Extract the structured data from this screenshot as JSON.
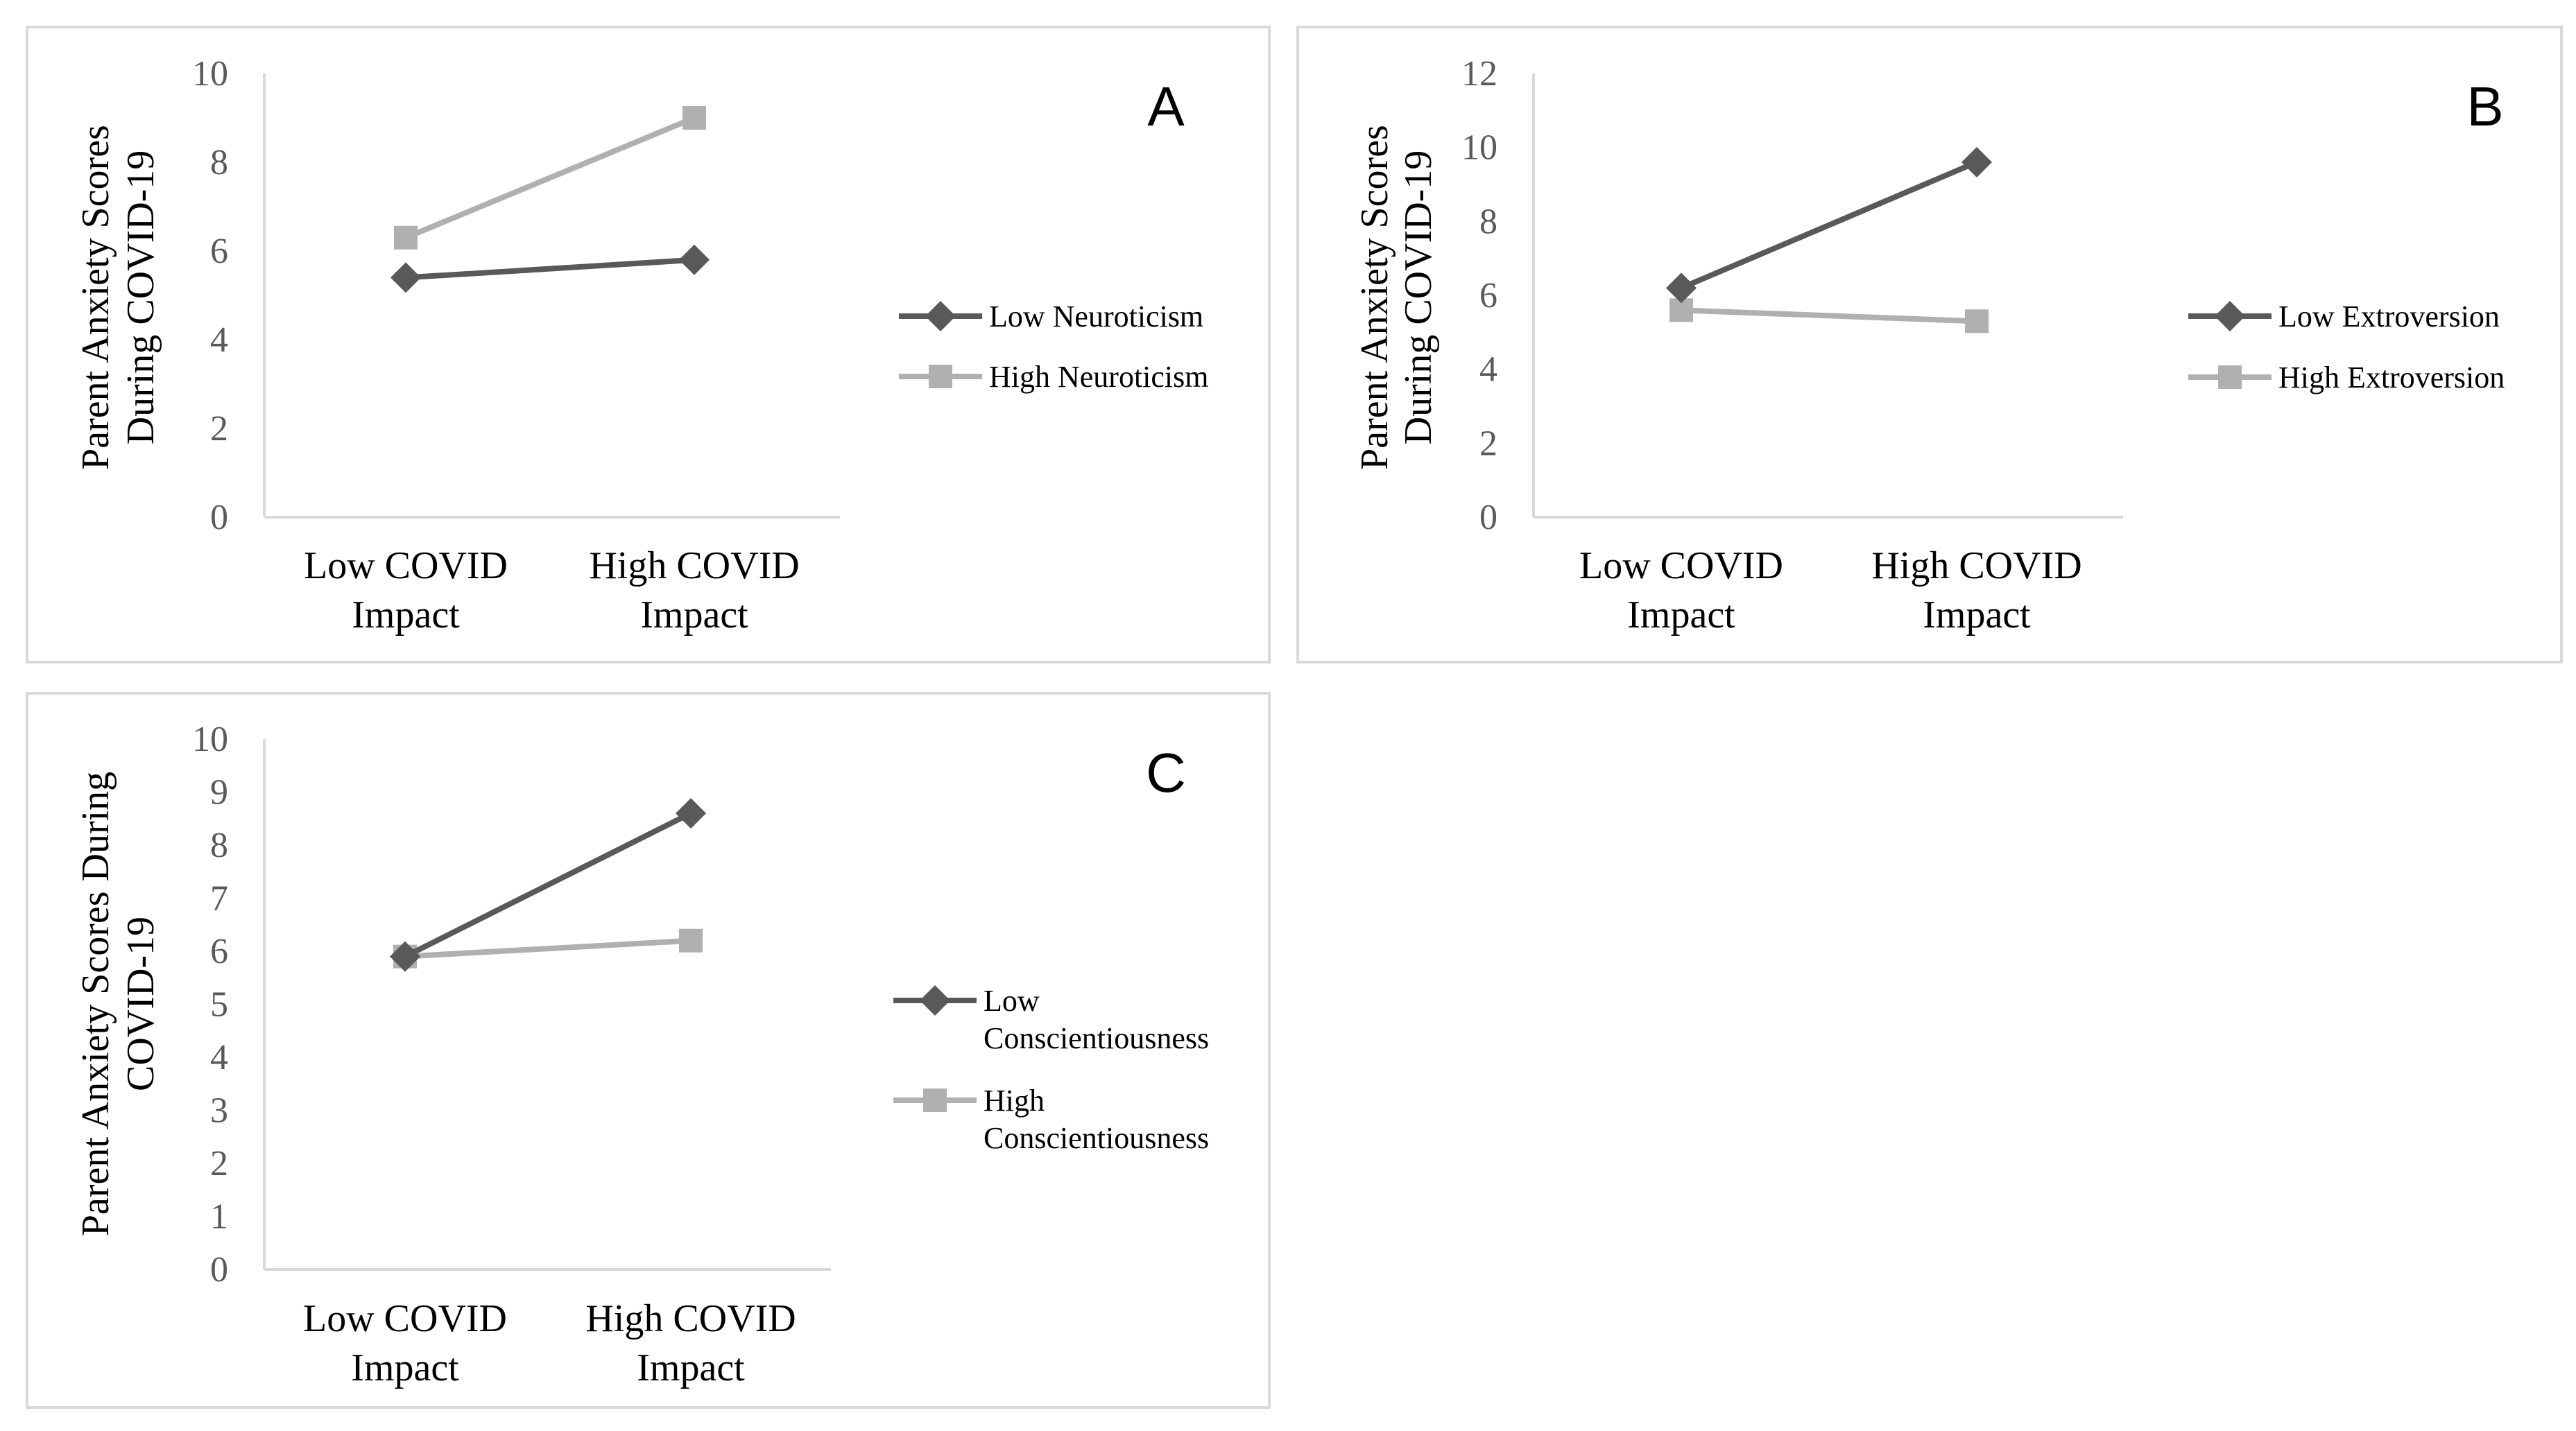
{
  "colors": {
    "low": "#595959",
    "high": "#b0b0b0",
    "axis": "#d9d9d9",
    "tick": "#595959"
  },
  "chart_data": [
    {
      "type": "line",
      "panel": "A",
      "ylabel_lines": [
        "Parent Anxiety Scores",
        "During COVID-19"
      ],
      "categories": [
        [
          "Low COVID",
          "Impact"
        ],
        [
          "High COVID",
          "Impact"
        ]
      ],
      "ylim": [
        0,
        10
      ],
      "yticks": [
        "0",
        "2",
        "4",
        "6",
        "8",
        "10"
      ],
      "series": [
        {
          "name_lines": [
            "Low Neuroticism"
          ],
          "marker": "diamond",
          "color": "#595959",
          "values": [
            5.4,
            5.8
          ]
        },
        {
          "name_lines": [
            "High Neuroticism"
          ],
          "marker": "square",
          "color": "#b0b0b0",
          "values": [
            6.3,
            9.0
          ]
        }
      ]
    },
    {
      "type": "line",
      "panel": "B",
      "ylabel_lines": [
        "Parent Anxiety Scores",
        "During COVID-19"
      ],
      "categories": [
        [
          "Low COVID",
          "Impact"
        ],
        [
          "High COVID",
          "Impact"
        ]
      ],
      "ylim": [
        0,
        12
      ],
      "yticks": [
        "0",
        "2",
        "4",
        "6",
        "8",
        "10",
        "12"
      ],
      "series": [
        {
          "name_lines": [
            "Low Extroversion"
          ],
          "marker": "diamond",
          "color": "#595959",
          "values": [
            6.2,
            9.6
          ]
        },
        {
          "name_lines": [
            "High Extroversion"
          ],
          "marker": "square",
          "color": "#b0b0b0",
          "values": [
            5.6,
            5.3
          ]
        }
      ]
    },
    {
      "type": "line",
      "panel": "C",
      "ylabel_lines": [
        "Parent Anxiety Scores During",
        "COVID-19"
      ],
      "categories": [
        [
          "Low COVID",
          "Impact"
        ],
        [
          "High COVID",
          "Impact"
        ]
      ],
      "ylim": [
        0,
        10
      ],
      "yticks": [
        "0",
        "1",
        "2",
        "3",
        "4",
        "5",
        "6",
        "7",
        "8",
        "9",
        "10"
      ],
      "series": [
        {
          "name_lines": [
            "Low",
            "Conscientiousness"
          ],
          "marker": "diamond",
          "color": "#595959",
          "values": [
            5.9,
            8.6
          ]
        },
        {
          "name_lines": [
            "High",
            "Conscientiousness"
          ],
          "marker": "square",
          "color": "#b0b0b0",
          "values": [
            5.9,
            6.2
          ]
        }
      ]
    }
  ]
}
